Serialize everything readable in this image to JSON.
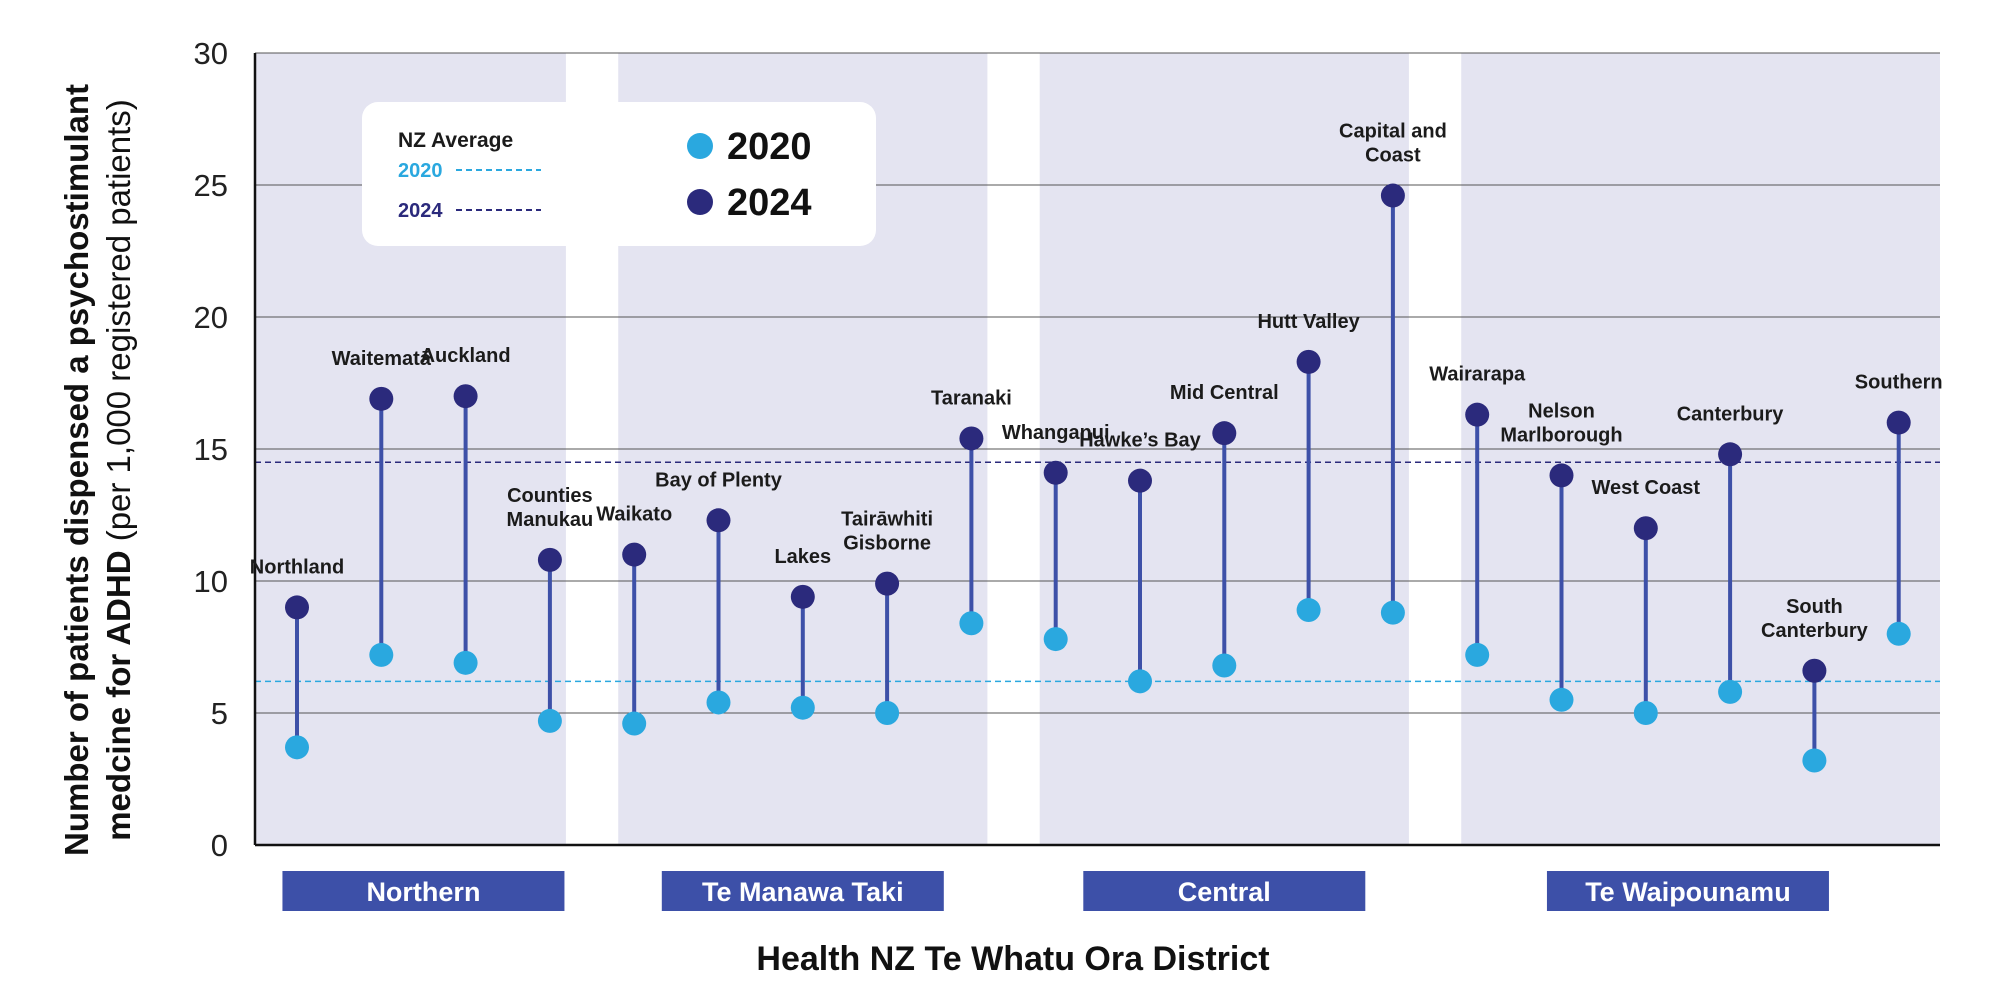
{
  "chart_data": {
    "type": "lollipop",
    "xlabel": "Health NZ Te Whatu Ora District",
    "ylabel_bold": "Number of patients dispensed a psychostimulant medcine for ADHD",
    "ylabel_normal": "(per 1,000 registered patients)",
    "ylim": [
      0,
      30
    ],
    "yticks": [
      "0",
      "5",
      "10",
      "15",
      "20",
      "25",
      "30"
    ],
    "legend": {
      "avg_title": "NZ Average",
      "avg_2020_label": "2020",
      "avg_2024_label": "2024",
      "series_2020_label": "2020",
      "series_2024_label": "2024"
    },
    "nz_average": {
      "2020": 6.2,
      "2024": 14.5
    },
    "colors": {
      "y2020": "#2aa8df",
      "y2024": "#2b2a7c",
      "stem": "#3d50a8",
      "band": "#e4e4f1",
      "region_box": "#3d50a8",
      "grid": "#555555"
    },
    "regions": [
      {
        "name": "Northern",
        "first": 0,
        "last": 3
      },
      {
        "name": "Te Manawa Taki",
        "first": 4,
        "last": 8
      },
      {
        "name": "Central",
        "first": 9,
        "last": 13
      },
      {
        "name": "Te Waipounamu",
        "first": 14,
        "last": 19
      }
    ],
    "districts": [
      {
        "label": [
          "Northland"
        ],
        "v2020": 3.7,
        "v2024": 9.0
      },
      {
        "label": [
          "Waitematā"
        ],
        "v2020": 7.2,
        "v2024": 16.9
      },
      {
        "label": [
          "Auckland"
        ],
        "v2020": 6.9,
        "v2024": 17.0
      },
      {
        "label": [
          "Counties",
          "Manukau"
        ],
        "v2020": 4.7,
        "v2024": 10.8
      },
      {
        "label": [
          "Waikato"
        ],
        "v2020": 4.6,
        "v2024": 11.0
      },
      {
        "label": [
          "Bay of Plenty"
        ],
        "v2020": 5.4,
        "v2024": 12.3
      },
      {
        "label": [
          "Lakes"
        ],
        "v2020": 5.2,
        "v2024": 9.4
      },
      {
        "label": [
          "Tairāwhiti",
          "Gisborne"
        ],
        "v2020": 5.0,
        "v2024": 9.9
      },
      {
        "label": [
          "Taranaki"
        ],
        "v2020": 8.4,
        "v2024": 15.4
      },
      {
        "label": [
          "Whanganui"
        ],
        "v2020": 7.8,
        "v2024": 14.1
      },
      {
        "label": [
          "Hawke’s Bay"
        ],
        "v2020": 6.2,
        "v2024": 13.8
      },
      {
        "label": [
          "Mid Central"
        ],
        "v2020": 6.8,
        "v2024": 15.6
      },
      {
        "label": [
          "Hutt Valley"
        ],
        "v2020": 8.9,
        "v2024": 18.3
      },
      {
        "label": [
          "Capital and",
          "Coast"
        ],
        "v2020": 8.8,
        "v2024": 24.6
      },
      {
        "label": [
          "Wairarapa"
        ],
        "v2020": 7.2,
        "v2024": 16.3
      },
      {
        "label": [
          "Nelson",
          "Marlborough"
        ],
        "v2020": 5.5,
        "v2024": 14.0
      },
      {
        "label": [
          "West Coast"
        ],
        "v2020": 5.0,
        "v2024": 12.0
      },
      {
        "label": [
          "Canterbury"
        ],
        "v2020": 5.8,
        "v2024": 14.8
      },
      {
        "label": [
          "South",
          "Canterbury"
        ],
        "v2020": 3.2,
        "v2024": 6.6
      },
      {
        "label": [
          "Southern"
        ],
        "v2020": 8.0,
        "v2024": 16.0
      }
    ]
  }
}
